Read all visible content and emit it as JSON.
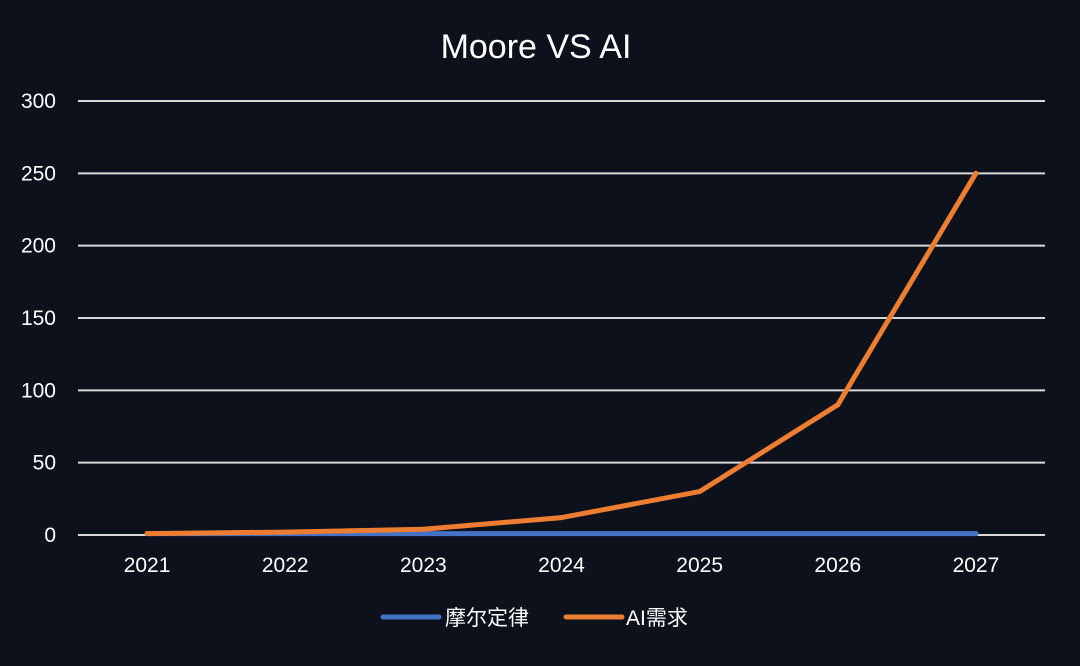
{
  "chart_data": {
    "type": "line",
    "title": "Moore VS AI",
    "xlabel": "",
    "ylabel": "",
    "categories": [
      "2021",
      "2022",
      "2023",
      "2024",
      "2025",
      "2026",
      "2027"
    ],
    "ylim": [
      0,
      300
    ],
    "yticks": [
      0,
      50,
      100,
      150,
      200,
      250,
      300
    ],
    "grid": true,
    "legend_position": "bottom",
    "background_color": "#0c111c",
    "text_color": "#ffffff",
    "grid_color": "#d9d9d9",
    "series": [
      {
        "name": "摩尔定律",
        "color": "#4472c4",
        "values": [
          1,
          1,
          1,
          1,
          1,
          1,
          1
        ]
      },
      {
        "name": "AI需求",
        "color": "#ed7d31",
        "values": [
          1,
          2,
          4,
          12,
          30,
          90,
          250
        ]
      }
    ]
  }
}
